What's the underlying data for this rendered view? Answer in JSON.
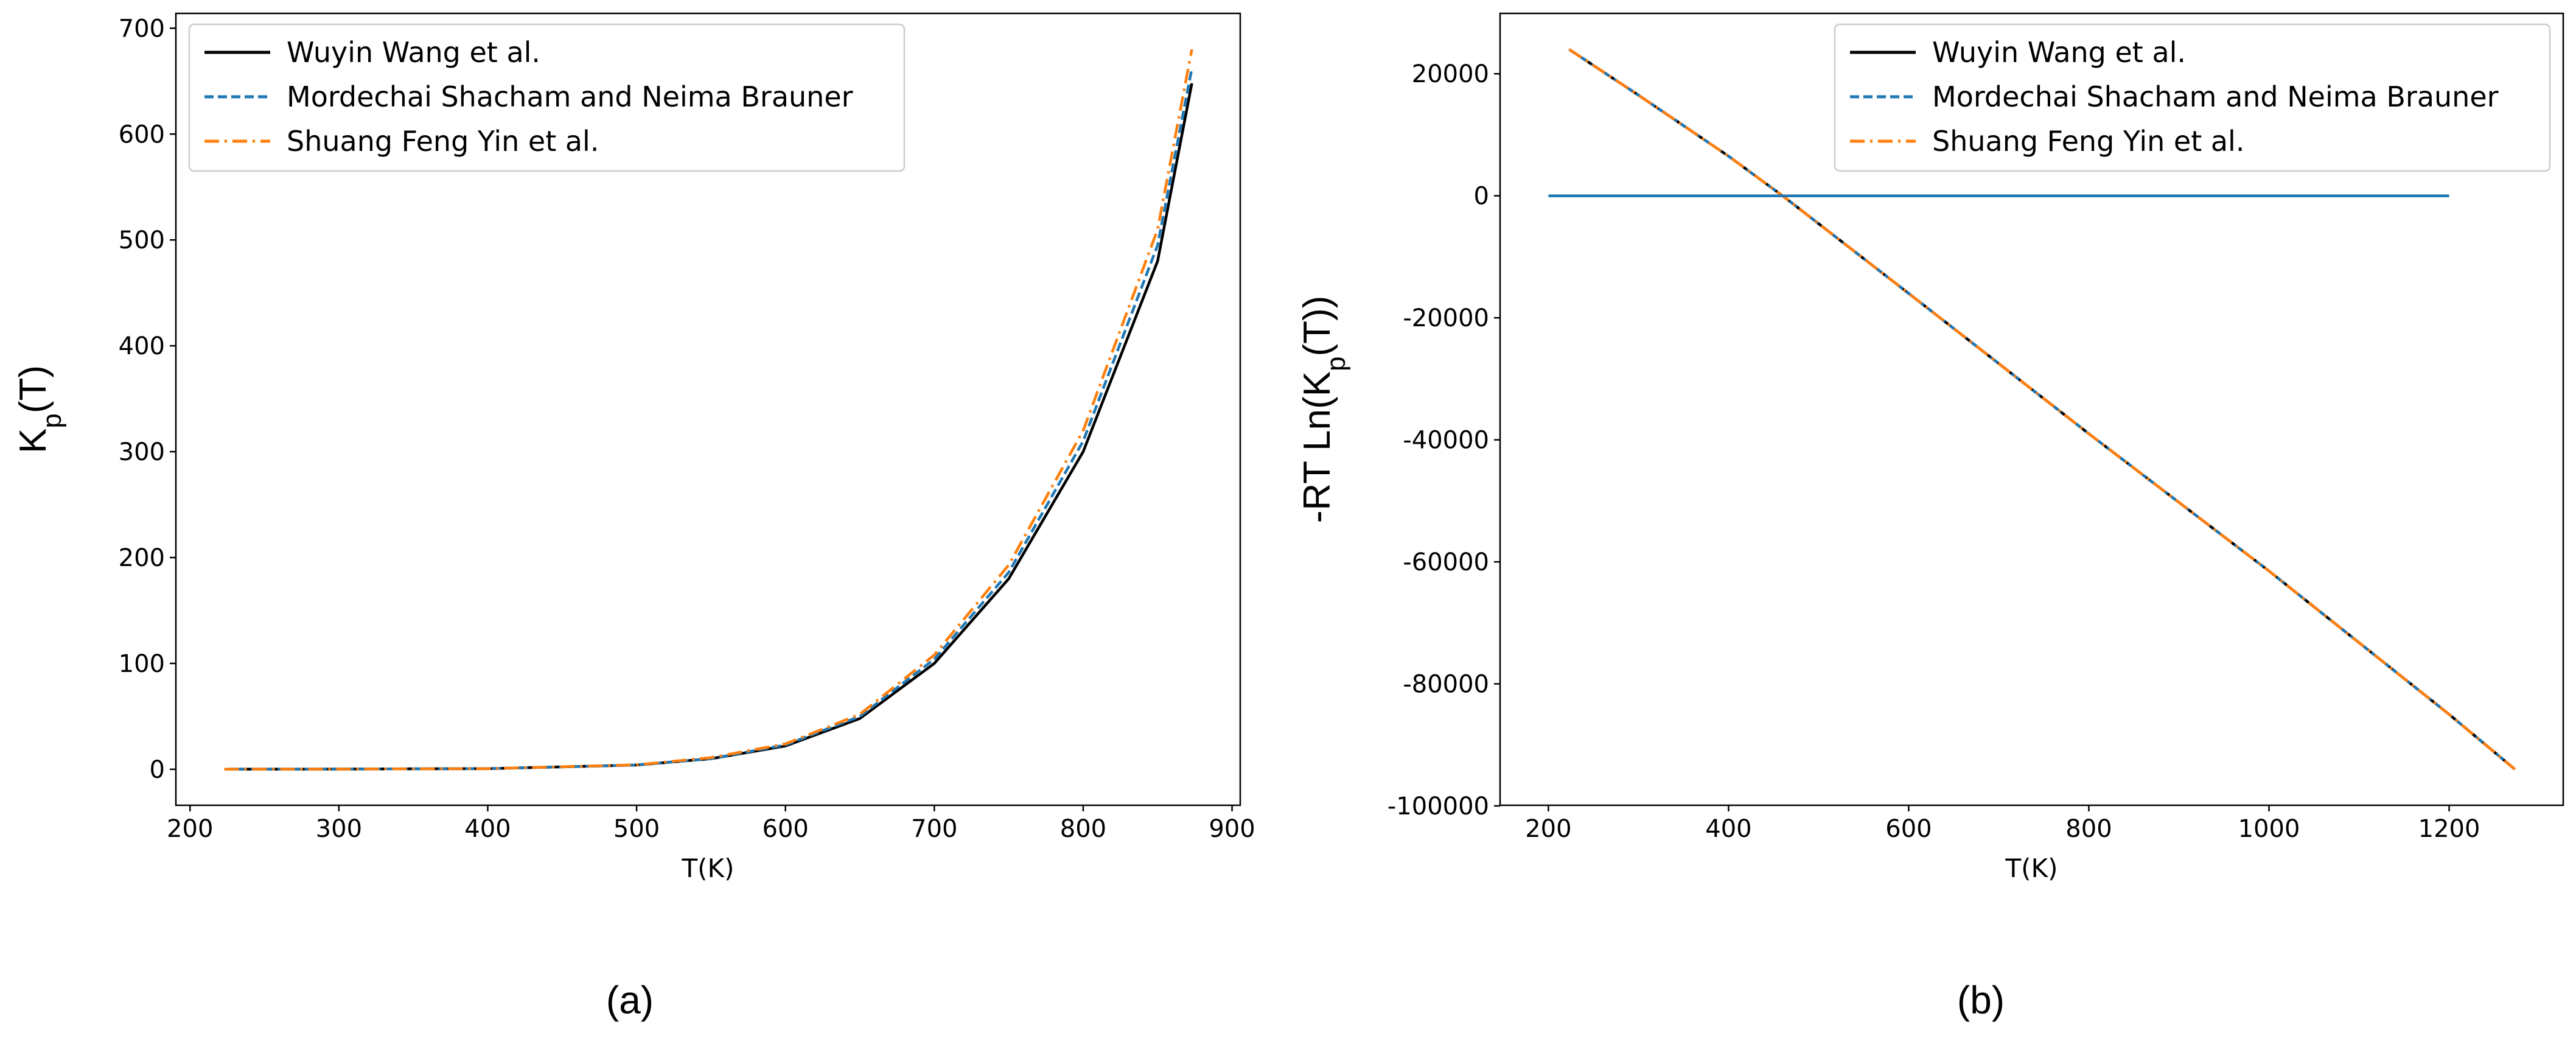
{
  "chart_data": [
    {
      "type": "line",
      "ylabel": [
        "K",
        "p",
        "(T)"
      ],
      "xlabel": "T(K)",
      "caption": "(a)",
      "xlim": [
        190.5,
        905.5
      ],
      "ylim": [
        -34,
        714
      ],
      "xticks": [
        200,
        300,
        400,
        500,
        600,
        700,
        800,
        900
      ],
      "yticks": [
        0,
        100,
        200,
        300,
        400,
        500,
        600,
        700
      ],
      "legend": "upper left",
      "x": [
        223,
        300,
        400,
        500,
        550,
        600,
        650,
        700,
        750,
        800,
        850,
        873
      ],
      "series": [
        {
          "name": "Wuyin Wang et al.",
          "color": "#000000",
          "linestyle": "solid",
          "values": [
            0.1,
            0.2,
            0.6,
            4,
            10,
            22,
            48,
            100,
            180,
            300,
            480,
            648
          ]
        },
        {
          "name": "Mordechai Shacham and Neima Brauner",
          "color": "#1f77b4",
          "linestyle": "dashed",
          "values": [
            0.1,
            0.2,
            0.6,
            4,
            10,
            23,
            50,
            104,
            186,
            310,
            495,
            662
          ]
        },
        {
          "name": "Shuang Feng Yin et al.",
          "color": "#ff7f0e",
          "linestyle": "dashdot",
          "values": [
            0.1,
            0.2,
            0.6,
            4.2,
            11,
            24,
            52,
            108,
            193,
            320,
            510,
            680
          ]
        }
      ]
    },
    {
      "type": "line",
      "ylabel": [
        "-RT Ln(K",
        "p",
        "(T))"
      ],
      "xlabel": "T(K)",
      "caption": "(b)",
      "xlim": [
        146.35,
        1326.65
      ],
      "ylim": [
        -99900,
        29900
      ],
      "xticks": [
        200,
        400,
        600,
        800,
        1000,
        1200
      ],
      "yticks": [
        -100000,
        -80000,
        -60000,
        -40000,
        -20000,
        0,
        20000
      ],
      "legend": "upper right",
      "x": [
        223,
        300,
        400,
        460,
        600,
        800,
        1000,
        1200,
        1273
      ],
      "series": [
        {
          "name": "Wuyin Wang et al.",
          "color": "#000000",
          "linestyle": "solid",
          "values": [
            24000,
            16500,
            6500,
            0,
            -16000,
            -39000,
            -61500,
            -85000,
            -94000
          ]
        },
        {
          "name": "Mordechai Shacham and Neima Brauner",
          "color": "#1f77b4",
          "linestyle": "dashed",
          "values": [
            24000,
            16500,
            6500,
            0,
            -16000,
            -39000,
            -61500,
            -85000,
            -94000
          ]
        },
        {
          "name": "Shuang Feng Yin et al.",
          "color": "#ff7f0e",
          "linestyle": "dashdot",
          "values": [
            24000,
            16500,
            6500,
            0,
            -16000,
            -39000,
            -61500,
            -85000,
            -94000
          ]
        },
        {
          "color": "#1f77b4",
          "linestyle": "solid",
          "x": [
            200,
            1200
          ],
          "values": [
            0,
            0
          ]
        }
      ]
    }
  ]
}
